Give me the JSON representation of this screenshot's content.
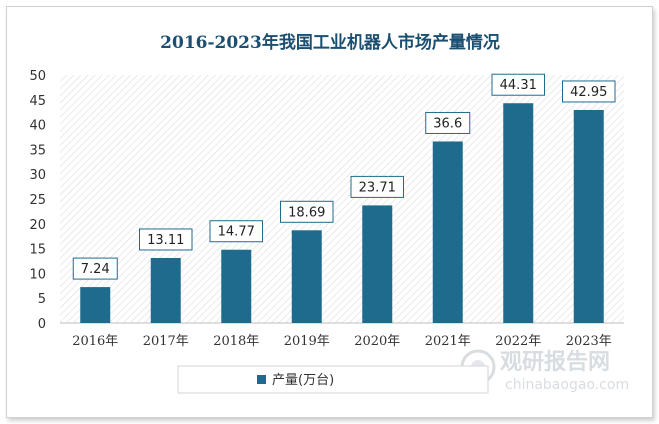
{
  "chart_data": {
    "type": "bar",
    "title": "2016-2023年我国工业机器人市场产量情况",
    "categories": [
      "2016年",
      "2017年",
      "2018年",
      "2019年",
      "2020年",
      "2021年",
      "2022年",
      "2023年"
    ],
    "series": [
      {
        "name": "产量(万台)",
        "values": [
          7.24,
          13.11,
          14.77,
          18.69,
          23.71,
          36.6,
          44.31,
          42.95
        ]
      }
    ],
    "data_labels": [
      "7.24",
      "13.11",
      "14.77",
      "18.69",
      "23.71",
      "36.6",
      "44.31",
      "42.95"
    ],
    "y_ticks": [
      "0",
      "5",
      "10",
      "15",
      "20",
      "25",
      "30",
      "35",
      "40",
      "45",
      "50"
    ],
    "ylim": [
      0,
      50
    ],
    "xlabel": "",
    "ylabel": "",
    "legend_position": "bottom",
    "grid": false
  },
  "watermark": {
    "name": "观研报告网",
    "url": "chinabaogao.com"
  },
  "colors": {
    "bar": "#1f6b8e",
    "title": "#1b4f72",
    "label_border": "#1f6b8e"
  }
}
